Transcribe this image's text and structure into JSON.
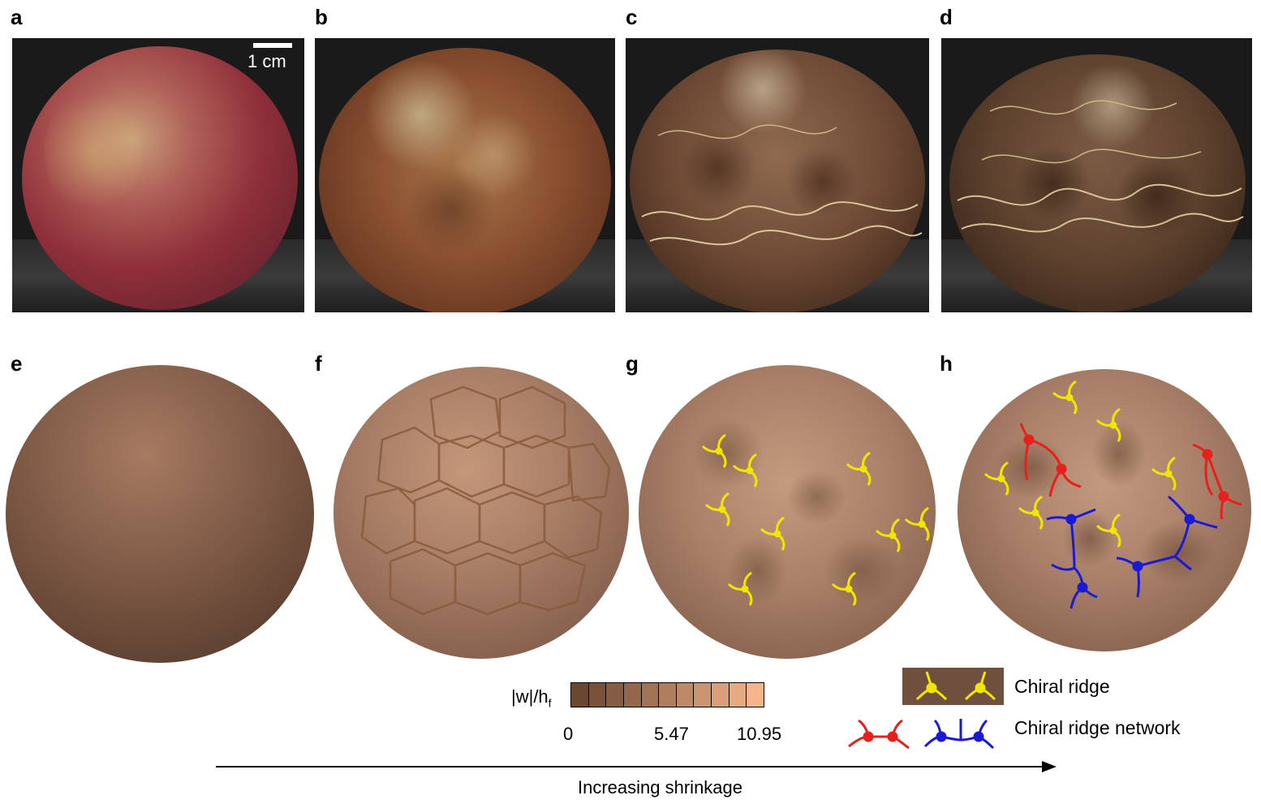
{
  "panels": {
    "a": "a",
    "b": "b",
    "c": "c",
    "d": "d",
    "e": "e",
    "f": "f",
    "g": "g",
    "h": "h"
  },
  "scale_bar": {
    "label": "1 cm"
  },
  "colorbar": {
    "label_main": "|w|/h",
    "label_sub": "f",
    "ticks": [
      "0",
      "5.47",
      "10.95"
    ],
    "min": 0,
    "mid": 5.47,
    "max": 10.95,
    "color_low": "#6b4630",
    "color_high": "#f4b58c"
  },
  "legend": {
    "chiral_ridge": "Chiral ridge",
    "chiral_ridge_network": "Chiral ridge network",
    "colors": {
      "yellow": "#f2e600",
      "red": "#e8201c",
      "blue": "#1a1ad6"
    }
  },
  "axis": {
    "label": "Increasing shrinkage"
  }
}
